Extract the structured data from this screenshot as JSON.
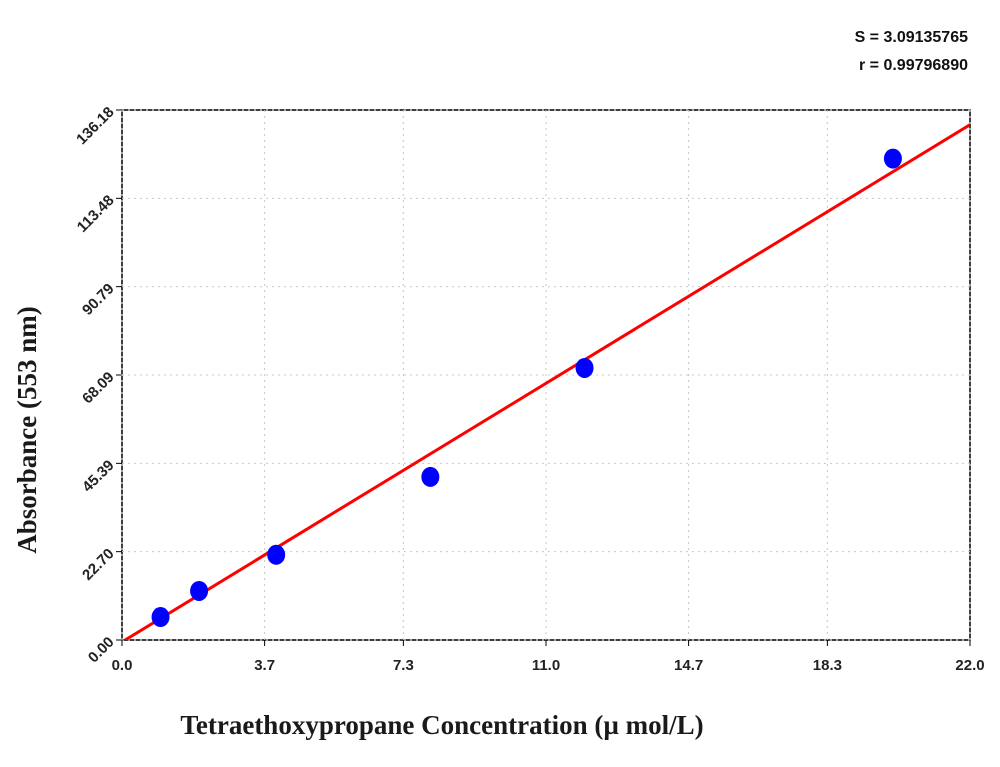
{
  "chart_data": {
    "type": "scatter",
    "x_label": "Tetraethoxypropane Concentration (µ mol/L)",
    "y_label": "Absorbance (553 nm)",
    "annotations": [
      "S = 3.09135765",
      "r = 0.99796890"
    ],
    "xlim": [
      0,
      22
    ],
    "ylim": [
      0,
      136.18
    ],
    "xticks": [
      {
        "value": 0,
        "label": "0.0"
      },
      3.7,
      7.3,
      {
        "value": 11,
        "label": "11.0"
      },
      14.7,
      18.3,
      {
        "value": 22,
        "label": "22.0"
      }
    ],
    "yticks": [
      {
        "value": 0,
        "label": "0.00"
      },
      {
        "value": 22.7,
        "label": "22.70"
      },
      45.39,
      68.09,
      90.79,
      113.48,
      136.18
    ],
    "grid": true,
    "series": [
      {
        "type": "scatter",
        "color": "#0000ff",
        "x": [
          1,
          2,
          4,
          8,
          12,
          20
        ],
        "values": [
          5.9,
          12.6,
          21.9,
          41.9,
          69.9,
          123.7
        ]
      },
      {
        "type": "line",
        "color": "#ff0000",
        "x": [
          0,
          22
        ],
        "values": [
          -0.5,
          132.4
        ]
      }
    ]
  }
}
